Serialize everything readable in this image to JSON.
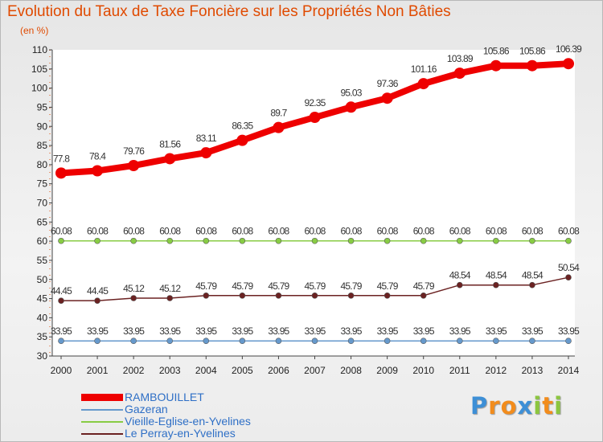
{
  "header": {
    "title": "Evolution du Taux de Taxe Foncière sur les Propriétés Non Bâties",
    "unit": "(en %)"
  },
  "chart_data": {
    "type": "line",
    "title": "Evolution du Taux de Taxe Foncière sur les Propriétés Non Bâties",
    "ylabel": "(en %)",
    "xlabel": "",
    "ylim": [
      30,
      110
    ],
    "yticks": [
      30,
      35,
      40,
      45,
      50,
      55,
      60,
      65,
      70,
      75,
      80,
      85,
      90,
      95,
      100,
      105,
      110
    ],
    "x": [
      "2000",
      "2001",
      "2002",
      "2003",
      "2004",
      "2005",
      "2006",
      "2007",
      "2008",
      "2009",
      "2010",
      "2011",
      "2012",
      "2013",
      "2014"
    ],
    "grid": false,
    "legend": "bottom-left",
    "series": [
      {
        "name": "RAMBOUILLET",
        "color": "#ee0000",
        "values": [
          77.8,
          78.4,
          79.76,
          81.56,
          83.11,
          86.35,
          89.7,
          92.35,
          95.03,
          97.36,
          101.16,
          103.89,
          105.86,
          105.86,
          106.39
        ],
        "labels": [
          "77.8",
          "78.4",
          "79.76",
          "81.56",
          "83.11",
          "86.35",
          "89.7",
          "92.35",
          "95.03",
          "97.36",
          "101.16",
          "103.89",
          "105.86",
          "105.86",
          "106.39"
        ]
      },
      {
        "name": "Gazeran",
        "color": "#6699cc",
        "values": [
          33.95,
          33.95,
          33.95,
          33.95,
          33.95,
          33.95,
          33.95,
          33.95,
          33.95,
          33.95,
          33.95,
          33.95,
          33.95,
          33.95,
          33.95
        ],
        "labels": [
          "33.95",
          "33.95",
          "33.95",
          "33.95",
          "33.95",
          "33.95",
          "33.95",
          "33.95",
          "33.95",
          "33.95",
          "33.95",
          "33.95",
          "33.95",
          "33.95",
          "33.95"
        ]
      },
      {
        "name": "Vieille-Eglise-en-Yvelines",
        "color": "#88cc44",
        "values": [
          60.08,
          60.08,
          60.08,
          60.08,
          60.08,
          60.08,
          60.08,
          60.08,
          60.08,
          60.08,
          60.08,
          60.08,
          60.08,
          60.08,
          60.08
        ],
        "labels": [
          "60.08",
          "60.08",
          "60.08",
          "60.08",
          "60.08",
          "60.08",
          "60.08",
          "60.08",
          "60.08",
          "60.08",
          "60.08",
          "60.08",
          "60.08",
          "60.08",
          "60.08"
        ]
      },
      {
        "name": "Le Perray-en-Yvelines",
        "color": "#6b2222",
        "values": [
          44.45,
          44.45,
          45.12,
          45.12,
          45.79,
          45.79,
          45.79,
          45.79,
          45.79,
          45.79,
          45.79,
          48.54,
          48.54,
          48.54,
          50.54
        ],
        "labels": [
          "44.45",
          "44.45",
          "45.12",
          "45.12",
          "45.79",
          "45.79",
          "45.79",
          "45.79",
          "45.79",
          "45.79",
          "45.79",
          "48.54",
          "48.54",
          "48.54",
          "50.54"
        ]
      }
    ]
  },
  "logo": {
    "letters": [
      "P",
      "r",
      "o",
      "x",
      "i",
      "t",
      "i"
    ],
    "colors": [
      "#3d8fd6",
      "#f28c1c",
      "#f28c1c",
      "#3d8fd6",
      "#8cc63f",
      "#f28c1c",
      "#8cc63f"
    ]
  }
}
